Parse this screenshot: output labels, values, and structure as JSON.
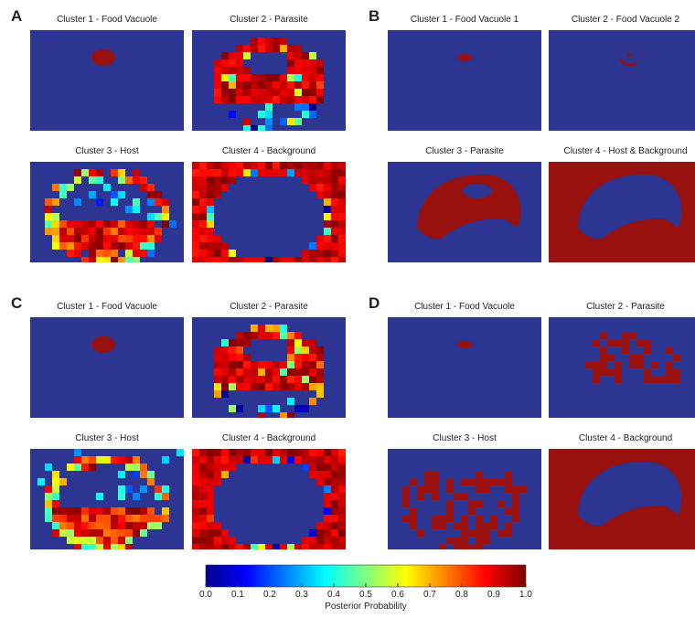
{
  "panels": [
    {
      "letter": "A",
      "clusters": [
        "Cluster 1 - Food Vacuole",
        "Cluster 2 - Parasite",
        "Cluster 3 - Host",
        "Cluster 4 - Background"
      ]
    },
    {
      "letter": "B",
      "clusters": [
        "Cluster 1 - Food Vacuole 1",
        "Cluster 2 - Food Vacuole 2",
        "Cluster 3 - Parasite",
        "Cluster 4 - Host & Background"
      ]
    },
    {
      "letter": "C",
      "clusters": [
        "Cluster 1 - Food Vacuole",
        "Cluster 2 - Parasite",
        "Cluster 3 - Host",
        "Cluster 4 - Background"
      ]
    },
    {
      "letter": "D",
      "clusters": [
        "Cluster 1 - Food Vacuole",
        "Cluster 2 - Parasite",
        "Cluster 3 - Host",
        "Cluster 4 - Background"
      ]
    }
  ],
  "colorbar": {
    "ticks": [
      {
        "value": 0,
        "label": "0.0"
      },
      0.1,
      0.2,
      0.3,
      0.4,
      0.5,
      0.6,
      0.7,
      0.8,
      0.9,
      {
        "value": 1,
        "label": "1.0"
      }
    ],
    "label": "Posterior Probability"
  }
}
